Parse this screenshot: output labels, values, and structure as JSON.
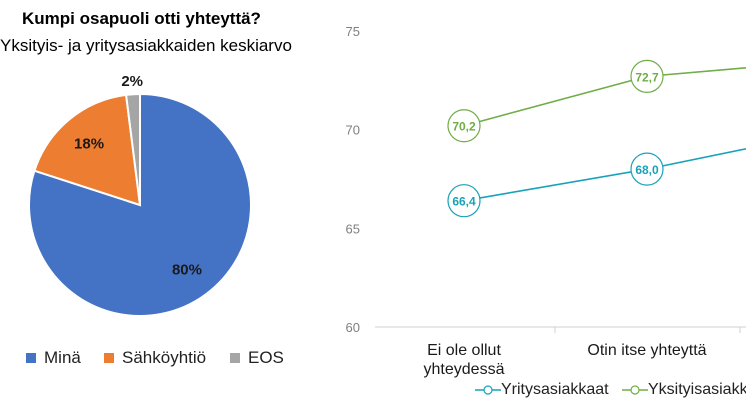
{
  "pie_chart": {
    "title": "Kumpi osapuoli otti yhteyttä?",
    "subtitle": "Yksityis- ja yritysasiakkaiden keskiarvo",
    "chart_data": {
      "type": "pie",
      "slices": [
        {
          "label": "Minä",
          "value": 80,
          "display": "80%",
          "color": "#4472c4"
        },
        {
          "label": "Sähköyhtiö",
          "value": 18,
          "display": "18%",
          "color": "#ed7d31"
        },
        {
          "label": "EOS",
          "value": 2,
          "display": "2%",
          "color": "#a5a5a5"
        }
      ]
    }
  },
  "line_chart": {
    "chart_data": {
      "type": "line",
      "categories": [
        "Ei ole ollut yhteydessä",
        "Otin itse yhteyttä",
        ""
      ],
      "ylim": [
        60,
        75
      ],
      "yticks": [
        "60",
        "65",
        "70",
        "75"
      ],
      "series": [
        {
          "name": "Yritysasiakkaat",
          "values": [
            66.4,
            68.0,
            69.9
          ],
          "labels": [
            "66,4",
            "68,0",
            ""
          ],
          "color": "#17a2b8"
        },
        {
          "name": "Yksityisasiakkaat",
          "values": [
            70.2,
            72.7,
            73.5
          ],
          "labels": [
            "70,2",
            "72,7",
            ""
          ],
          "color": "#70ad47"
        }
      ]
    }
  },
  "category_label_lines": [
    [
      "Ei ole ollut",
      "yhteydessä"
    ],
    [
      "Otin itse yhteyttä"
    ]
  ],
  "legend_labels": {
    "yritys": "Yritysasiakkaat",
    "yksityis": "Yksityisasiakkaat"
  }
}
